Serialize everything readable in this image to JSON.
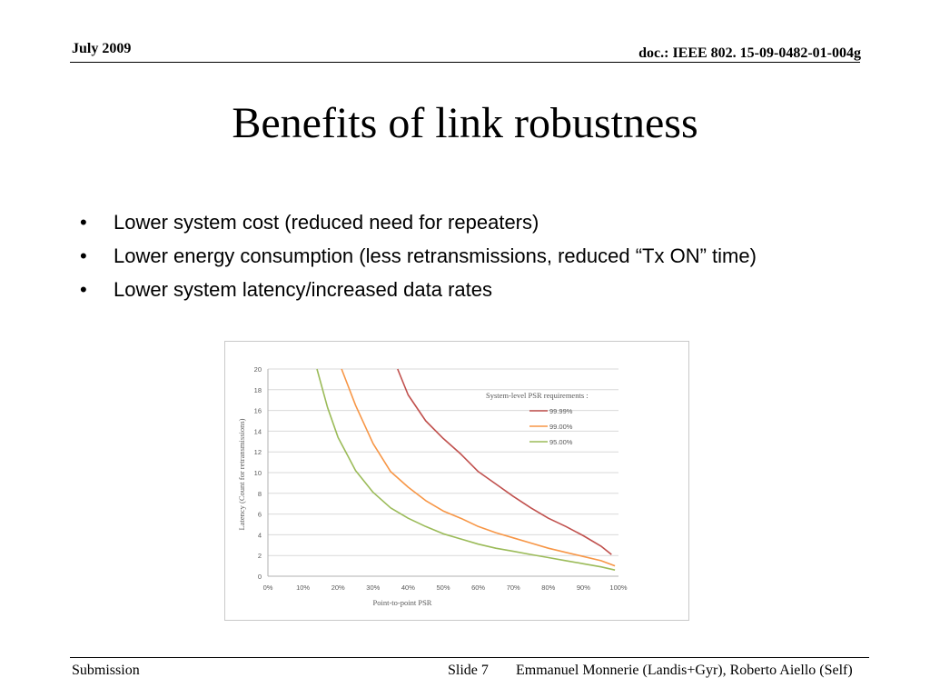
{
  "header": {
    "date": "July 2009",
    "doc": "doc.: IEEE 802. 15-09-0482-01-004g"
  },
  "slide": {
    "title": "Benefits of link robustness",
    "bullets": [
      "Lower system cost (reduced need for repeaters)",
      "Lower energy consumption (less retransmissions, reduced “Tx ON” time)",
      "Lower system latency/increased data rates"
    ],
    "bullet_glyph": "•"
  },
  "footer": {
    "left": "Submission",
    "slide": "Slide 7",
    "right": "Emmanuel Monnerie (Landis+Gyr), Roberto Aiello (Self)"
  },
  "chart_data": {
    "type": "line",
    "title": "",
    "xlabel": "Point-to-point PSR",
    "ylabel": "Latency (Count for retransmissions)",
    "xlim": [
      0,
      100
    ],
    "ylim": [
      0,
      20
    ],
    "x_ticks": [
      "0%",
      "10%",
      "20%",
      "30%",
      "40%",
      "50%",
      "60%",
      "70%",
      "80%",
      "90%",
      "100%"
    ],
    "y_ticks": [
      "0",
      "2",
      "4",
      "6",
      "8",
      "10",
      "12",
      "14",
      "16",
      "18",
      "20"
    ],
    "grid": "horizontal",
    "legend_title": "System-level PSR requirements :",
    "legend_position": "top-right",
    "series": [
      {
        "name": "99.99%",
        "color": "#c0504d",
        "points": [
          [
            37,
            20
          ],
          [
            40,
            17.5
          ],
          [
            45,
            15
          ],
          [
            50,
            13.3
          ],
          [
            55,
            11.8
          ],
          [
            60,
            10.1
          ],
          [
            65,
            8.9
          ],
          [
            70,
            7.7
          ],
          [
            75,
            6.6
          ],
          [
            80,
            5.6
          ],
          [
            85,
            4.8
          ],
          [
            90,
            3.9
          ],
          [
            95,
            2.9
          ],
          [
            98,
            2.1
          ]
        ]
      },
      {
        "name": "99.00%",
        "color": "#f79646",
        "points": [
          [
            21,
            20
          ],
          [
            25,
            16.5
          ],
          [
            30,
            12.8
          ],
          [
            35,
            10.1
          ],
          [
            40,
            8.6
          ],
          [
            45,
            7.3
          ],
          [
            50,
            6.3
          ],
          [
            55,
            5.6
          ],
          [
            60,
            4.8
          ],
          [
            65,
            4.2
          ],
          [
            70,
            3.7
          ],
          [
            75,
            3.2
          ],
          [
            80,
            2.7
          ],
          [
            85,
            2.3
          ],
          [
            90,
            1.9
          ],
          [
            95,
            1.5
          ],
          [
            99,
            1.0
          ]
        ]
      },
      {
        "name": "95.00%",
        "color": "#9bbb59",
        "points": [
          [
            14,
            20
          ],
          [
            17,
            16.3
          ],
          [
            20,
            13.4
          ],
          [
            25,
            10.2
          ],
          [
            30,
            8.1
          ],
          [
            35,
            6.6
          ],
          [
            40,
            5.6
          ],
          [
            45,
            4.8
          ],
          [
            50,
            4.1
          ],
          [
            55,
            3.6
          ],
          [
            60,
            3.1
          ],
          [
            65,
            2.7
          ],
          [
            70,
            2.4
          ],
          [
            75,
            2.1
          ],
          [
            80,
            1.8
          ],
          [
            85,
            1.5
          ],
          [
            90,
            1.2
          ],
          [
            95,
            0.9
          ],
          [
            99,
            0.6
          ]
        ]
      }
    ],
    "axis_color": "#b0b0b0",
    "grid_color": "#d9d9d9",
    "text_color": "#595959"
  }
}
